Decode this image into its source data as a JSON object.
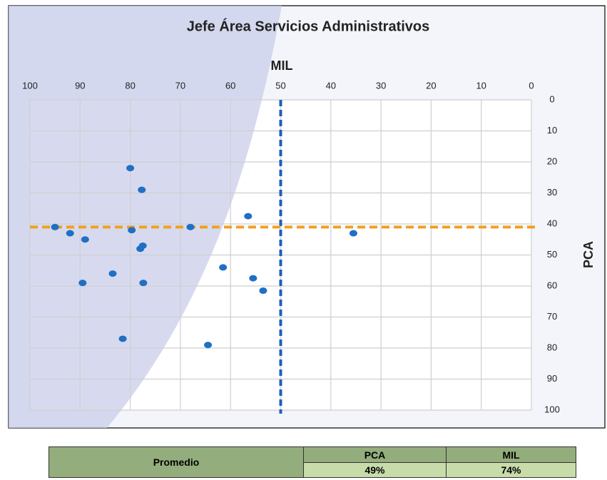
{
  "chart_data": {
    "type": "scatter",
    "title": "Jefe Área Servicios Administrativos",
    "x_label": "MIL",
    "y_label": "PCA",
    "x": [
      95,
      92,
      89,
      89.5,
      83.5,
      80,
      77.7,
      79.7,
      78,
      77.5,
      77.4,
      81.5,
      68,
      56.5,
      61.5,
      55.5,
      53.5,
      64.5,
      35.5
    ],
    "y": [
      41,
      43,
      45,
      59,
      56,
      22,
      29,
      42,
      48,
      47,
      59,
      77,
      41,
      37.5,
      54,
      57.5,
      61.5,
      79,
      43
    ],
    "color": "#1f6fc5",
    "xlim": [
      100,
      0
    ],
    "xticks": [
      100,
      90,
      80,
      70,
      60,
      50,
      40,
      30,
      20,
      10,
      0
    ],
    "ylim": [
      0,
      100
    ],
    "yticks": [
      0,
      10,
      20,
      30,
      40,
      50,
      60,
      70,
      80,
      90,
      100
    ],
    "grid": true,
    "x_reference": 50,
    "x_reference_color": "#1f5fbf",
    "y_reference": 41,
    "y_reference_color": "#f0a020"
  },
  "table": {
    "row_label": "Promedio",
    "columns": [
      "PCA",
      "MIL"
    ],
    "values": [
      "49%",
      "74%"
    ]
  }
}
